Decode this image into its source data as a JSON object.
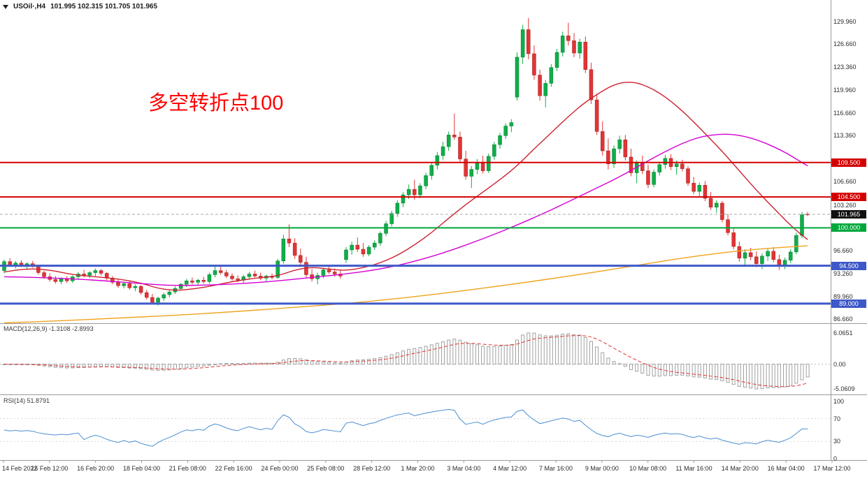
{
  "chart_data": {
    "type": "candlestick",
    "symbol": "USOil",
    "timeframe": "H4",
    "title": "USOil·,H4",
    "ohlc_display": "101.995 102.315 101.705 101.965",
    "current": {
      "open": 101.995,
      "high": 102.315,
      "low": 101.705,
      "close": 101.965
    },
    "annotation": {
      "text": "多空转折点100",
      "color": "#ff0000"
    },
    "y_axis": {
      "top_price": 132.5,
      "bottom_price": 86.25,
      "grid_labels": [
        "129.960",
        "126.660",
        "123.360",
        "119.960",
        "116.660",
        "113.360",
        "106.660",
        "103.260",
        "96.660",
        "93.260",
        "89.960",
        "86.660"
      ]
    },
    "x_labels": [
      "14 Feb 2022",
      "15 Feb 12:00",
      "16 Feb 20:00",
      "18 Feb 04:00",
      "21 Feb 08:00",
      "22 Feb 16:00",
      "24 Feb 00:00",
      "25 Feb 08:00",
      "28 Feb 12:00",
      "1 Mar 20:00",
      "3 Mar 04:00",
      "4 Mar 12:00",
      "7 Mar 16:00",
      "9 Mar 00:00",
      "10 Mar 08:00",
      "11 Mar 16:00",
      "14 Mar 20:00",
      "16 Mar 04:00",
      "17 Mar 12:00"
    ],
    "horizontal_lines": [
      {
        "price": 109.5,
        "label": "109.500",
        "color": "#d40000",
        "width": 2
      },
      {
        "price": 104.5,
        "label": "104.500",
        "color": "#d40000",
        "width": 2
      },
      {
        "price": 100.0,
        "label": "100.000",
        "color": "#00a83c",
        "width": 2
      },
      {
        "price": 94.5,
        "label": "94.500",
        "color": "#3e58c8",
        "width": 3
      },
      {
        "price": 89.0,
        "label": "89.000",
        "color": "#3e58c8",
        "width": 3
      }
    ],
    "bid_line": {
      "price": 101.965,
      "label": "101.965",
      "badge_color": "#111111",
      "line_color": "#aaaaaa"
    },
    "colors": {
      "up": "#0fae48",
      "up_edge": "#0a7a32",
      "down": "#e23434",
      "down_edge": "#9e2222",
      "ma_fast": "#cc2130",
      "ma_mid": "#d400d4",
      "ma_slow": "#efa31e",
      "macd_hist": "#a0a0a0",
      "macd_signal": "#e23434",
      "rsi_line": "#4a8fd4",
      "separator": "#9a9a9a"
    },
    "moving_averages": [
      {
        "name": "ma-fast",
        "color": "#cc2130",
        "points": [
          [
            0,
            93.6
          ],
          [
            4,
            94.1
          ],
          [
            8,
            93.9
          ],
          [
            12,
            93.2
          ],
          [
            16,
            92.9
          ],
          [
            20,
            92.6
          ],
          [
            24,
            92.0
          ],
          [
            27,
            91.2
          ],
          [
            30,
            90.9
          ],
          [
            33,
            91.1
          ],
          [
            36,
            91.5
          ],
          [
            40,
            92.2
          ],
          [
            44,
            92.7
          ],
          [
            48,
            93.0
          ],
          [
            51,
            93.9
          ],
          [
            54,
            94.3
          ],
          [
            57,
            94.0
          ],
          [
            60,
            93.8
          ],
          [
            63,
            94.2
          ],
          [
            66,
            94.9
          ],
          [
            69,
            96.0
          ],
          [
            72,
            97.5
          ],
          [
            75,
            99.3
          ],
          [
            78,
            101.4
          ],
          [
            81,
            103.4
          ],
          [
            84,
            105.2
          ],
          [
            87,
            107.0
          ],
          [
            90,
            109.0
          ],
          [
            93,
            111.5
          ],
          [
            96,
            113.8
          ],
          [
            99,
            116.2
          ],
          [
            102,
            118.3
          ],
          [
            105,
            119.9
          ],
          [
            107,
            120.8
          ],
          [
            109,
            121.2
          ],
          [
            111,
            121.1
          ],
          [
            113,
            120.5
          ],
          [
            115,
            119.6
          ],
          [
            117,
            118.4
          ],
          [
            119,
            117.0
          ],
          [
            121,
            115.4
          ],
          [
            123,
            113.7
          ],
          [
            125,
            112.0
          ],
          [
            127,
            110.2
          ],
          [
            129,
            108.3
          ],
          [
            131,
            106.4
          ],
          [
            133,
            104.6
          ],
          [
            135,
            102.9
          ],
          [
            137,
            101.2
          ],
          [
            139,
            99.6
          ],
          [
            141,
            98.3
          ]
        ]
      },
      {
        "name": "ma-mid",
        "color": "#d400d4",
        "points": [
          [
            0,
            92.9
          ],
          [
            6,
            92.8
          ],
          [
            12,
            92.6
          ],
          [
            18,
            92.3
          ],
          [
            24,
            91.9
          ],
          [
            30,
            91.6
          ],
          [
            36,
            91.7
          ],
          [
            42,
            91.9
          ],
          [
            48,
            92.3
          ],
          [
            54,
            92.8
          ],
          [
            60,
            93.3
          ],
          [
            66,
            94.0
          ],
          [
            72,
            95.1
          ],
          [
            78,
            96.6
          ],
          [
            84,
            98.4
          ],
          [
            90,
            100.4
          ],
          [
            96,
            102.6
          ],
          [
            102,
            105.0
          ],
          [
            108,
            107.4
          ],
          [
            112,
            109.3
          ],
          [
            116,
            111.1
          ],
          [
            119,
            112.3
          ],
          [
            122,
            113.2
          ],
          [
            125,
            113.6
          ],
          [
            128,
            113.6
          ],
          [
            131,
            113.1
          ],
          [
            134,
            112.2
          ],
          [
            137,
            111.0
          ],
          [
            139,
            110.0
          ],
          [
            141,
            109.0
          ]
        ]
      },
      {
        "name": "ma-slow",
        "color": "#efa31e",
        "points": [
          [
            0,
            86.2
          ],
          [
            10,
            86.5
          ],
          [
            20,
            86.9
          ],
          [
            30,
            87.3
          ],
          [
            40,
            87.8
          ],
          [
            50,
            88.4
          ],
          [
            60,
            89.0
          ],
          [
            70,
            89.8
          ],
          [
            80,
            90.8
          ],
          [
            90,
            91.9
          ],
          [
            100,
            93.1
          ],
          [
            110,
            94.4
          ],
          [
            118,
            95.5
          ],
          [
            126,
            96.4
          ],
          [
            132,
            96.9
          ],
          [
            137,
            97.2
          ],
          [
            141,
            97.4
          ]
        ]
      }
    ],
    "candles": [
      [
        93.8,
        95.4,
        93.4,
        95.1
      ],
      [
        95.1,
        95.6,
        94.4,
        94.6
      ],
      [
        94.6,
        95.2,
        94.1,
        94.9
      ],
      [
        94.9,
        95.3,
        94.3,
        94.5
      ],
      [
        94.5,
        95.0,
        93.9,
        94.8
      ],
      [
        94.8,
        95.2,
        94.2,
        94.4
      ],
      [
        94.4,
        94.6,
        93.2,
        93.5
      ],
      [
        93.5,
        93.8,
        92.6,
        92.9
      ],
      [
        92.9,
        93.4,
        92.2,
        92.5
      ],
      [
        92.5,
        93.0,
        91.9,
        92.2
      ],
      [
        92.2,
        92.8,
        91.8,
        92.6
      ],
      [
        92.6,
        93.0,
        92.0,
        92.3
      ],
      [
        92.3,
        93.1,
        92.0,
        92.9
      ],
      [
        92.9,
        93.6,
        92.5,
        93.3
      ],
      [
        93.3,
        93.9,
        92.8,
        93.1
      ],
      [
        93.1,
        93.7,
        92.7,
        93.5
      ],
      [
        93.5,
        94.1,
        93.0,
        93.8
      ],
      [
        93.8,
        94.0,
        93.1,
        93.4
      ],
      [
        93.4,
        93.6,
        92.4,
        92.7
      ],
      [
        92.7,
        93.0,
        91.8,
        92.1
      ],
      [
        92.1,
        92.5,
        91.3,
        91.6
      ],
      [
        91.6,
        92.2,
        91.2,
        91.9
      ],
      [
        91.9,
        92.3,
        91.0,
        91.3
      ],
      [
        91.3,
        91.8,
        90.8,
        91.5
      ],
      [
        91.5,
        91.7,
        90.3,
        90.6
      ],
      [
        90.6,
        91.0,
        89.6,
        89.9
      ],
      [
        89.9,
        90.4,
        88.9,
        89.2
      ],
      [
        89.2,
        90.0,
        88.7,
        89.8
      ],
      [
        89.8,
        90.6,
        89.4,
        90.3
      ],
      [
        90.3,
        91.0,
        89.9,
        90.7
      ],
      [
        90.7,
        91.5,
        90.4,
        91.2
      ],
      [
        91.2,
        92.0,
        90.9,
        91.8
      ],
      [
        91.8,
        92.6,
        91.4,
        92.3
      ],
      [
        92.3,
        92.8,
        91.8,
        92.1
      ],
      [
        92.1,
        92.6,
        91.6,
        92.4
      ],
      [
        92.4,
        92.9,
        91.9,
        92.2
      ],
      [
        92.2,
        93.5,
        91.9,
        93.2
      ],
      [
        93.2,
        94.4,
        92.8,
        93.8
      ],
      [
        93.8,
        94.6,
        93.2,
        93.5
      ],
      [
        93.5,
        93.9,
        92.7,
        93.0
      ],
      [
        93.0,
        93.4,
        92.3,
        92.6
      ],
      [
        92.6,
        93.1,
        92.1,
        92.4
      ],
      [
        92.4,
        93.2,
        92.0,
        92.9
      ],
      [
        92.9,
        93.6,
        92.5,
        93.3
      ],
      [
        93.3,
        93.8,
        92.8,
        93.0
      ],
      [
        93.0,
        93.5,
        92.4,
        92.7
      ],
      [
        92.7,
        93.2,
        92.2,
        93.0
      ],
      [
        93.0,
        93.4,
        92.5,
        92.8
      ],
      [
        92.8,
        95.5,
        92.6,
        95.2
      ],
      [
        95.2,
        99.0,
        94.8,
        98.4
      ],
      [
        98.4,
        100.5,
        97.2,
        97.8
      ],
      [
        97.8,
        98.5,
        95.5,
        96.0
      ],
      [
        96.0,
        97.0,
        94.5,
        95.0
      ],
      [
        95.0,
        95.8,
        92.8,
        93.2
      ],
      [
        93.2,
        94.0,
        92.2,
        92.6
      ],
      [
        92.6,
        93.5,
        91.8,
        93.1
      ],
      [
        93.1,
        94.2,
        92.7,
        93.9
      ],
      [
        93.9,
        94.5,
        93.3,
        93.6
      ],
      [
        93.6,
        94.1,
        92.9,
        93.3
      ],
      [
        93.3,
        93.8,
        92.6,
        93.0
      ],
      [
        95.4,
        97.2,
        94.9,
        96.8
      ],
      [
        96.8,
        98.0,
        96.1,
        97.5
      ],
      [
        97.5,
        98.6,
        96.5,
        96.9
      ],
      [
        96.9,
        97.8,
        95.8,
        96.2
      ],
      [
        96.2,
        97.5,
        95.9,
        97.2
      ],
      [
        97.2,
        98.2,
        96.8,
        97.8
      ],
      [
        97.8,
        99.5,
        97.4,
        99.2
      ],
      [
        99.2,
        101.0,
        98.8,
        100.6
      ],
      [
        100.6,
        102.5,
        100.2,
        102.1
      ],
      [
        102.1,
        104.0,
        101.6,
        103.6
      ],
      [
        103.6,
        105.2,
        103.0,
        104.8
      ],
      [
        104.8,
        106.3,
        104.2,
        105.6
      ],
      [
        105.6,
        107.0,
        104.1,
        104.8
      ],
      [
        104.8,
        106.5,
        104.3,
        106.1
      ],
      [
        106.1,
        108.0,
        105.6,
        107.6
      ],
      [
        107.6,
        109.5,
        107.0,
        109.1
      ],
      [
        109.1,
        111.0,
        108.5,
        110.5
      ],
      [
        110.5,
        112.5,
        109.9,
        111.8
      ],
      [
        111.8,
        114.0,
        111.2,
        113.5
      ],
      [
        113.5,
        116.6,
        112.8,
        113.2
      ],
      [
        113.2,
        114.0,
        109.5,
        110.0
      ],
      [
        110.0,
        111.2,
        107.0,
        107.5
      ],
      [
        107.5,
        109.0,
        105.8,
        108.5
      ],
      [
        108.5,
        110.0,
        107.8,
        109.4
      ],
      [
        109.4,
        110.5,
        107.9,
        108.3
      ],
      [
        108.3,
        110.8,
        108.0,
        110.4
      ],
      [
        110.4,
        112.5,
        109.9,
        112.1
      ],
      [
        112.1,
        113.8,
        111.5,
        113.4
      ],
      [
        113.4,
        115.2,
        112.9,
        114.8
      ],
      [
        114.8,
        115.8,
        113.9,
        115.3
      ],
      [
        119.0,
        125.5,
        118.5,
        124.8
      ],
      [
        124.8,
        129.5,
        123.8,
        128.8
      ],
      [
        128.8,
        130.5,
        124.5,
        125.3
      ],
      [
        125.3,
        126.5,
        121.5,
        122.2
      ],
      [
        122.2,
        123.0,
        118.5,
        119.2
      ],
      [
        119.2,
        121.5,
        117.5,
        121.0
      ],
      [
        121.0,
        123.8,
        120.5,
        123.3
      ],
      [
        123.3,
        126.0,
        122.8,
        125.5
      ],
      [
        125.5,
        128.5,
        124.9,
        127.9
      ],
      [
        127.9,
        129.8,
        126.5,
        127.2
      ],
      [
        127.2,
        128.3,
        124.8,
        125.4
      ],
      [
        125.4,
        127.5,
        124.6,
        127.0
      ],
      [
        127.0,
        127.8,
        122.5,
        123.0
      ],
      [
        123.0,
        124.0,
        118.0,
        118.6
      ],
      [
        118.6,
        119.5,
        113.5,
        114.0
      ],
      [
        114.0,
        115.5,
        110.5,
        111.2
      ],
      [
        111.2,
        113.0,
        108.5,
        109.3
      ],
      [
        109.3,
        112.0,
        108.7,
        111.5
      ],
      [
        111.5,
        113.4,
        110.8,
        112.8
      ],
      [
        112.8,
        113.5,
        109.8,
        110.3
      ],
      [
        110.3,
        111.5,
        107.5,
        108.0
      ],
      [
        108.0,
        109.8,
        106.5,
        109.4
      ],
      [
        109.4,
        110.5,
        107.8,
        108.3
      ],
      [
        108.3,
        109.2,
        105.8,
        106.3
      ],
      [
        106.3,
        108.5,
        105.9,
        108.1
      ],
      [
        108.1,
        109.6,
        107.6,
        109.2
      ],
      [
        109.2,
        110.6,
        108.6,
        110.1
      ],
      [
        110.1,
        110.7,
        108.4,
        108.9
      ],
      [
        108.9,
        109.8,
        107.7,
        109.3
      ],
      [
        109.3,
        109.9,
        108.2,
        108.6
      ],
      [
        108.6,
        109.0,
        106.1,
        106.5
      ],
      [
        106.5,
        107.4,
        104.9,
        105.3
      ],
      [
        105.3,
        106.6,
        104.6,
        106.2
      ],
      [
        106.2,
        106.8,
        103.9,
        104.3
      ],
      [
        104.3,
        105.2,
        102.6,
        103.0
      ],
      [
        103.0,
        104.0,
        102.2,
        103.6
      ],
      [
        103.6,
        103.9,
        100.8,
        101.2
      ],
      [
        101.2,
        102.0,
        98.9,
        99.3
      ],
      [
        99.3,
        100.1,
        96.9,
        97.3
      ],
      [
        97.3,
        98.0,
        95.1,
        95.6
      ],
      [
        95.6,
        96.9,
        94.6,
        96.4
      ],
      [
        96.4,
        97.1,
        95.3,
        95.8
      ],
      [
        95.8,
        96.6,
        94.3,
        94.8
      ],
      [
        94.8,
        96.3,
        94.0,
        95.9
      ],
      [
        95.9,
        97.0,
        95.2,
        96.6
      ],
      [
        96.6,
        97.2,
        95.0,
        95.4
      ],
      [
        95.4,
        96.1,
        93.9,
        94.4
      ],
      [
        94.4,
        95.7,
        94.0,
        95.3
      ],
      [
        95.3,
        96.9,
        94.9,
        96.5
      ],
      [
        96.5,
        99.3,
        96.2,
        98.9
      ],
      [
        98.9,
        102.3,
        98.5,
        101.9
      ],
      [
        101.995,
        102.315,
        101.705,
        101.965
      ]
    ],
    "indicators": {
      "macd": {
        "label": "MACD(12,26,9) -1.3108 -2.8993",
        "fast": 12,
        "slow": 26,
        "signal": 9,
        "last_main": -1.3108,
        "last_signal": -2.8993,
        "axis_labels": [
          "6.0651",
          "0.00",
          "-5.0609"
        ]
      },
      "rsi": {
        "label": "RSI(14) 51.8791",
        "period": 14,
        "last": 51.8791,
        "axis_labels": [
          "100",
          "70",
          "30",
          "0"
        ],
        "levels": [
          70,
          30
        ]
      }
    }
  }
}
